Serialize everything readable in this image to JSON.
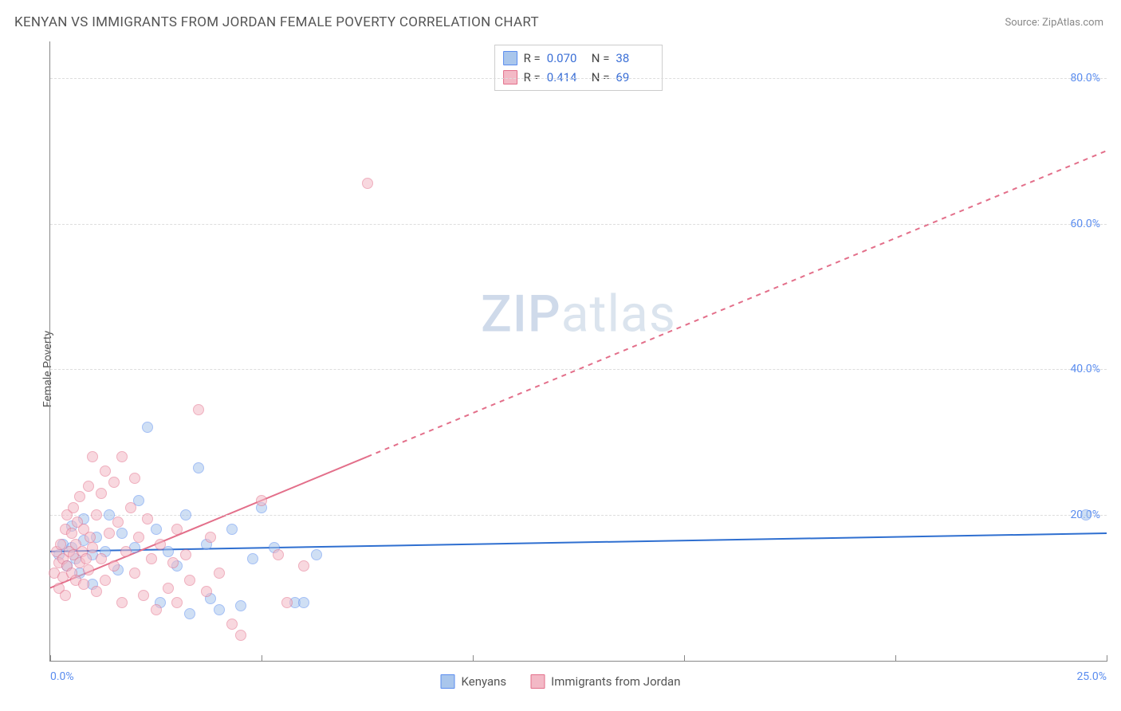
{
  "title": "KENYAN VS IMMIGRANTS FROM JORDAN FEMALE POVERTY CORRELATION CHART",
  "source": "Source: ZipAtlas.com",
  "ylabel": "Female Poverty",
  "watermark_bold": "ZIP",
  "watermark_rest": "atlas",
  "chart": {
    "type": "scatter",
    "xlim": [
      0,
      25
    ],
    "ylim": [
      0,
      85
    ],
    "ytick_step": 20,
    "yticks": [
      20,
      40,
      60,
      80
    ],
    "ytick_labels": [
      "20.0%",
      "40.0%",
      "60.0%",
      "80.0%"
    ],
    "xtick_positions": [
      0,
      5,
      10,
      15,
      20,
      25
    ],
    "xtick_labels_shown": {
      "0": "0.0%",
      "25": "25.0%"
    },
    "grid_color": "#dddddd",
    "axis_color": "#888888",
    "tick_label_color": "#5b8def",
    "background_color": "#ffffff",
    "marker_radius": 7,
    "marker_opacity": 0.55,
    "series": [
      {
        "key": "kenyans",
        "label": "Kenyans",
        "fill": "#a9c6ec",
        "stroke": "#5b8def",
        "R": "0.070",
        "N": "38",
        "trend": {
          "x1": 0,
          "y1": 15.0,
          "x2": 25,
          "y2": 17.5,
          "color": "#2f6fd0",
          "width": 2
        },
        "points": [
          [
            0.2,
            14.5
          ],
          [
            0.3,
            16.0
          ],
          [
            0.4,
            13.0
          ],
          [
            0.5,
            15.5
          ],
          [
            0.5,
            18.5
          ],
          [
            0.6,
            14.0
          ],
          [
            0.7,
            12.0
          ],
          [
            0.8,
            16.5
          ],
          [
            0.8,
            19.5
          ],
          [
            1.0,
            14.5
          ],
          [
            1.0,
            10.5
          ],
          [
            1.1,
            17.0
          ],
          [
            1.3,
            15.0
          ],
          [
            1.4,
            20.0
          ],
          [
            1.6,
            12.5
          ],
          [
            1.7,
            17.5
          ],
          [
            2.0,
            15.5
          ],
          [
            2.1,
            22.0
          ],
          [
            2.3,
            32.0
          ],
          [
            2.5,
            18.0
          ],
          [
            2.6,
            8.0
          ],
          [
            2.8,
            15.0
          ],
          [
            3.0,
            13.0
          ],
          [
            3.2,
            20.0
          ],
          [
            3.3,
            6.5
          ],
          [
            3.5,
            26.5
          ],
          [
            3.7,
            16.0
          ],
          [
            3.8,
            8.5
          ],
          [
            4.0,
            7.0
          ],
          [
            4.3,
            18.0
          ],
          [
            4.5,
            7.5
          ],
          [
            4.8,
            14.0
          ],
          [
            5.0,
            21.0
          ],
          [
            5.3,
            15.5
          ],
          [
            5.8,
            8.0
          ],
          [
            6.0,
            8.0
          ],
          [
            6.3,
            14.5
          ],
          [
            24.5,
            20.0
          ]
        ]
      },
      {
        "key": "jordan",
        "label": "Immigrants from Jordan",
        "fill": "#f3b9c6",
        "stroke": "#e36f8a",
        "R": "0.414",
        "N": "69",
        "trend": {
          "x1": 0,
          "y1": 10.0,
          "x2": 25,
          "y2": 70.0,
          "color": "#e36f8a",
          "width": 2,
          "dash_after_x": 7.5
        },
        "points": [
          [
            0.1,
            12.0
          ],
          [
            0.15,
            15.0
          ],
          [
            0.2,
            13.5
          ],
          [
            0.2,
            10.0
          ],
          [
            0.25,
            16.0
          ],
          [
            0.3,
            14.0
          ],
          [
            0.3,
            11.5
          ],
          [
            0.35,
            18.0
          ],
          [
            0.35,
            9.0
          ],
          [
            0.4,
            13.0
          ],
          [
            0.4,
            20.0
          ],
          [
            0.45,
            15.0
          ],
          [
            0.5,
            12.0
          ],
          [
            0.5,
            17.5
          ],
          [
            0.55,
            14.5
          ],
          [
            0.55,
            21.0
          ],
          [
            0.6,
            11.0
          ],
          [
            0.6,
            16.0
          ],
          [
            0.65,
            19.0
          ],
          [
            0.7,
            13.5
          ],
          [
            0.7,
            22.5
          ],
          [
            0.75,
            15.0
          ],
          [
            0.8,
            10.5
          ],
          [
            0.8,
            18.0
          ],
          [
            0.85,
            14.0
          ],
          [
            0.9,
            24.0
          ],
          [
            0.9,
            12.5
          ],
          [
            0.95,
            17.0
          ],
          [
            1.0,
            28.0
          ],
          [
            1.0,
            15.5
          ],
          [
            1.1,
            20.0
          ],
          [
            1.1,
            9.5
          ],
          [
            1.2,
            23.0
          ],
          [
            1.2,
            14.0
          ],
          [
            1.3,
            26.0
          ],
          [
            1.3,
            11.0
          ],
          [
            1.4,
            17.5
          ],
          [
            1.5,
            24.5
          ],
          [
            1.5,
            13.0
          ],
          [
            1.6,
            19.0
          ],
          [
            1.7,
            28.0
          ],
          [
            1.7,
            8.0
          ],
          [
            1.8,
            15.0
          ],
          [
            1.9,
            21.0
          ],
          [
            2.0,
            12.0
          ],
          [
            2.0,
            25.0
          ],
          [
            2.1,
            17.0
          ],
          [
            2.2,
            9.0
          ],
          [
            2.3,
            19.5
          ],
          [
            2.4,
            14.0
          ],
          [
            2.5,
            7.0
          ],
          [
            2.6,
            16.0
          ],
          [
            2.8,
            10.0
          ],
          [
            2.9,
            13.5
          ],
          [
            3.0,
            8.0
          ],
          [
            3.0,
            18.0
          ],
          [
            3.2,
            14.5
          ],
          [
            3.3,
            11.0
          ],
          [
            3.5,
            34.5
          ],
          [
            3.7,
            9.5
          ],
          [
            3.8,
            17.0
          ],
          [
            4.0,
            12.0
          ],
          [
            4.3,
            5.0
          ],
          [
            4.5,
            3.5
          ],
          [
            5.0,
            22.0
          ],
          [
            5.4,
            14.5
          ],
          [
            5.6,
            8.0
          ],
          [
            6.0,
            13.0
          ],
          [
            7.5,
            65.5
          ]
        ]
      }
    ]
  },
  "legend_top": {
    "r_label": "R =",
    "n_label": "N ="
  },
  "colors": {
    "title": "#555555",
    "source": "#888888",
    "watermark": "#dbe4ee"
  }
}
